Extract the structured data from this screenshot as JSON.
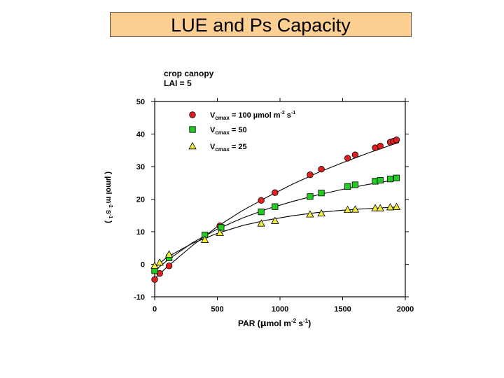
{
  "slide": {
    "title": "LUE and Ps Capacity"
  },
  "chart_data": {
    "type": "scatter",
    "annotation_lines": [
      "crop canopy",
      "LAI = 5"
    ],
    "xlabel": "PAR (µmol m-2 s-1)",
    "ylabel": "(µmol m-2 s-1)",
    "xlim": [
      0,
      2000
    ],
    "ylim": [
      -10,
      50
    ],
    "x_ticks": [
      0,
      500,
      1000,
      1500,
      2000
    ],
    "y_ticks": [
      -10,
      0,
      10,
      20,
      30,
      40,
      50
    ],
    "legend_position": "top-left",
    "series": [
      {
        "name": "Vcmax = 100 µmol m-2 s-1",
        "legend": {
          "main": "V",
          "sub": "cmax",
          "rest": " = 100 µmol m",
          "sup1": "-2",
          "mid": " s",
          "sup2": "-1"
        },
        "marker": "circle",
        "color": "#e02020",
        "x": [
          0,
          40,
          115,
          520,
          850,
          960,
          1240,
          1330,
          1540,
          1600,
          1760,
          1800,
          1880,
          1905,
          1930
        ],
        "y": [
          -4.7,
          -2.8,
          -0.5,
          11.8,
          19.6,
          22.0,
          27.5,
          29.2,
          32.6,
          33.6,
          35.8,
          36.3,
          37.5,
          37.8,
          38.2
        ],
        "fit": [
          [
            0,
            -4.4
          ],
          [
            100,
            -0.8
          ],
          [
            300,
            5.7
          ],
          [
            500,
            11.6
          ],
          [
            700,
            16.5
          ],
          [
            900,
            20.7
          ],
          [
            1100,
            24.6
          ],
          [
            1300,
            28.1
          ],
          [
            1500,
            31.2
          ],
          [
            1700,
            34.1
          ],
          [
            1900,
            36.8
          ],
          [
            1950,
            37.4
          ]
        ]
      },
      {
        "name": "Vcmax = 50",
        "legend": {
          "main": "V",
          "sub": "cmax",
          "rest": " = 50"
        },
        "marker": "square",
        "color": "#22cc22",
        "x": [
          0,
          115,
          400,
          530,
          850,
          960,
          1240,
          1330,
          1540,
          1600,
          1760,
          1800,
          1880,
          1930
        ],
        "y": [
          -2.0,
          2.0,
          9.0,
          11.3,
          16.1,
          17.7,
          20.8,
          21.9,
          23.9,
          24.4,
          25.5,
          25.8,
          26.2,
          26.5
        ],
        "fit": [
          [
            0,
            -2.0
          ],
          [
            100,
            1.2
          ],
          [
            300,
            6.6
          ],
          [
            500,
            10.8
          ],
          [
            700,
            14.2
          ],
          [
            900,
            17.0
          ],
          [
            1100,
            19.3
          ],
          [
            1300,
            21.3
          ],
          [
            1500,
            23.0
          ],
          [
            1700,
            24.5
          ],
          [
            1900,
            25.8
          ],
          [
            1950,
            26.2
          ]
        ]
      },
      {
        "name": "Vcmax = 25",
        "legend": {
          "main": "V",
          "sub": "cmax",
          "rest": " = 25"
        },
        "marker": "triangle",
        "color": "#f2ec3c",
        "x": [
          0,
          40,
          115,
          400,
          520,
          850,
          960,
          1240,
          1330,
          1540,
          1600,
          1760,
          1800,
          1880,
          1930
        ],
        "y": [
          -0.5,
          0.5,
          3.0,
          7.5,
          9.6,
          12.5,
          13.3,
          15.3,
          15.6,
          16.7,
          16.8,
          17.2,
          17.2,
          17.5,
          17.6
        ],
        "fit": [
          [
            0,
            -1.0
          ],
          [
            100,
            2.2
          ],
          [
            300,
            6.4
          ],
          [
            500,
            9.5
          ],
          [
            700,
            11.9
          ],
          [
            900,
            13.6
          ],
          [
            1100,
            14.9
          ],
          [
            1300,
            15.9
          ],
          [
            1500,
            16.6
          ],
          [
            1700,
            17.1
          ],
          [
            1900,
            17.5
          ],
          [
            1950,
            17.6
          ]
        ]
      }
    ]
  }
}
